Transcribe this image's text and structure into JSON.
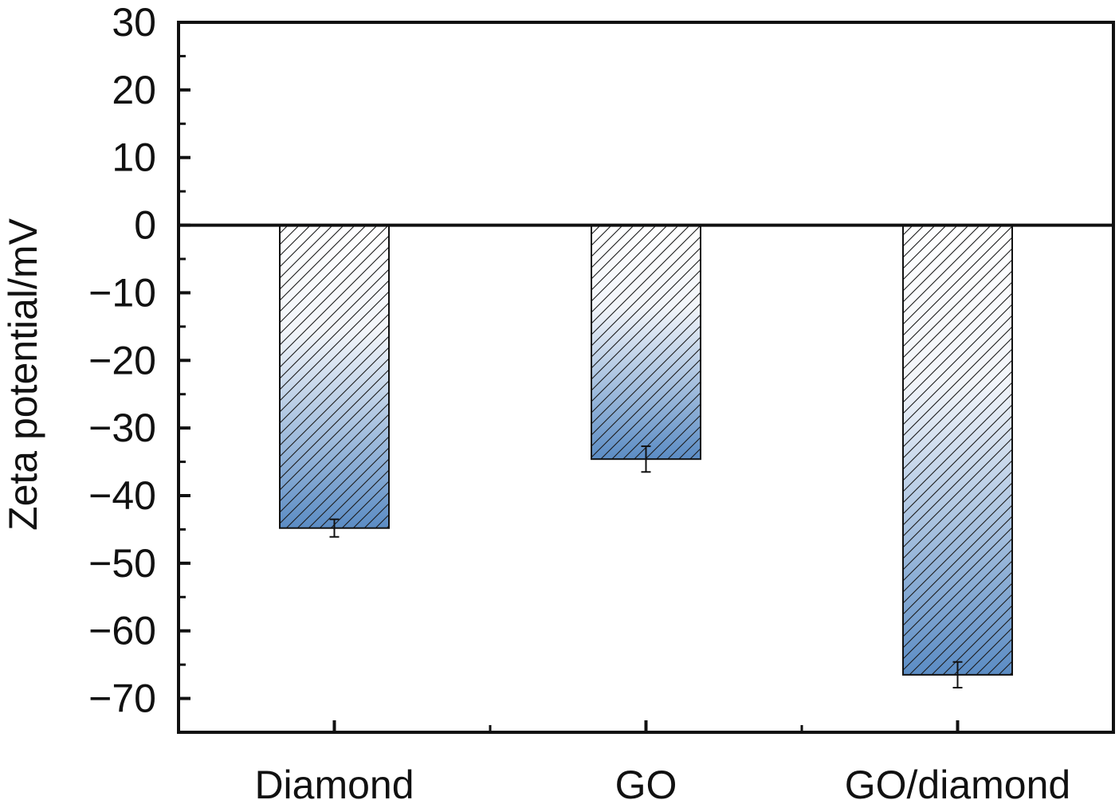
{
  "chart_data": {
    "type": "bar",
    "title": "",
    "xlabel": "",
    "ylabel": "Zeta potential/mV",
    "categories": [
      "Diamond",
      "GO",
      "GO/diamond"
    ],
    "values": [
      -44.8,
      -34.6,
      -66.5
    ],
    "errors": [
      1.3,
      1.9,
      1.9
    ],
    "ylim": [
      -75,
      30
    ],
    "yticks": [
      30,
      20,
      10,
      0,
      -10,
      -20,
      -30,
      -40,
      -50,
      -60,
      -70
    ],
    "ytick_labels": [
      "30",
      "20",
      "10",
      "0",
      "−10",
      "−20",
      "−30",
      "−40",
      "−50",
      "−60",
      "−70"
    ],
    "grid": false,
    "zero_line": true,
    "bar_fill": "gradient white to blue with diagonal hatching",
    "colors": {
      "bar_top": "#ffffff",
      "bar_bottom": "#5b8cc4",
      "hatch": "#1a1a1a",
      "axes": "#111111"
    }
  }
}
